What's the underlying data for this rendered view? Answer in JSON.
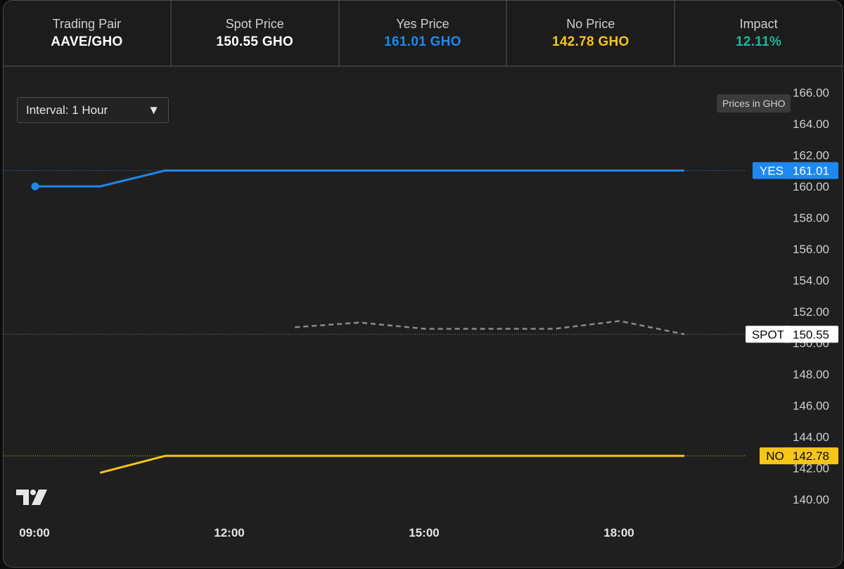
{
  "header": {
    "stats": [
      {
        "label": "Trading Pair",
        "value": "AAVE/GHO",
        "color": "#ffffff"
      },
      {
        "label": "Spot Price",
        "value": "150.55 GHO",
        "color": "#ffffff"
      },
      {
        "label": "Yes Price",
        "value": "161.01 GHO",
        "color": "#1e88f0"
      },
      {
        "label": "No Price",
        "value": "142.78 GHO",
        "color": "#f5c518"
      },
      {
        "label": "Impact",
        "value": "12.11%",
        "color": "#1fb89a"
      }
    ]
  },
  "controls": {
    "interval_label": "Interval: 1 Hour",
    "dropdown_glyph": "▼",
    "prices_note": "Prices in GHO"
  },
  "colors": {
    "yes": "#1e88f0",
    "no": "#f5c518",
    "spot": "#8a8a8a",
    "background": "#1f1f1f",
    "axis_text": "#cfcfcf"
  },
  "chart_data": {
    "type": "line",
    "x_tick_labels": [
      "09:00",
      "12:00",
      "15:00",
      "18:00"
    ],
    "x_range_hours": [
      9,
      18.55
    ],
    "ylim": [
      139.2,
      166.3
    ],
    "y_ticks": [
      140,
      142,
      144,
      146,
      148,
      150,
      152,
      154,
      156,
      158,
      160,
      162,
      164,
      166
    ],
    "y_tick_labels": [
      "140.00",
      "142.00",
      "144.00",
      "146.00",
      "148.00",
      "150.00",
      "152.00",
      "154.00",
      "156.00",
      "158.00",
      "160.00",
      "162.00",
      "164.00",
      "166.00"
    ],
    "grid": false,
    "series": [
      {
        "name": "YES",
        "style": "solid",
        "color": "#1e88f0",
        "x": [
          9.0,
          10.0,
          11.0,
          12.0,
          13.0,
          14.0,
          15.0,
          16.0,
          17.0,
          18.0,
          19.0
        ],
        "y": [
          160.0,
          160.0,
          161.01,
          161.01,
          161.01,
          161.01,
          161.01,
          161.01,
          161.01,
          161.01,
          161.01
        ],
        "start_marker": true,
        "last_value_label": "161.01"
      },
      {
        "name": "NO",
        "style": "solid",
        "color": "#f5c518",
        "x": [
          10.0,
          11.0,
          12.0,
          13.0,
          14.0,
          15.0,
          16.0,
          17.0,
          18.0,
          19.0
        ],
        "y": [
          141.7,
          142.78,
          142.78,
          142.78,
          142.78,
          142.78,
          142.78,
          142.78,
          142.78,
          142.78
        ],
        "last_value_label": "142.78"
      },
      {
        "name": "SPOT",
        "style": "dashed",
        "color": "#8a8a8a",
        "x": [
          13.0,
          14.0,
          15.0,
          16.0,
          17.0,
          18.0,
          19.0
        ],
        "y": [
          151.0,
          151.3,
          150.9,
          150.9,
          150.9,
          151.4,
          150.55
        ],
        "last_value_label": "150.55"
      }
    ]
  }
}
